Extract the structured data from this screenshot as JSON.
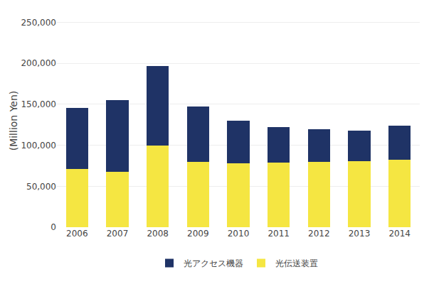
{
  "chart_data": {
    "type": "bar",
    "stacked": true,
    "categories": [
      "2006",
      "2007",
      "2008",
      "2009",
      "2010",
      "2011",
      "2012",
      "2013",
      "2014"
    ],
    "series": [
      {
        "name": "光伝送装置",
        "color": "#F5E642",
        "values": [
          71000,
          68000,
          100000,
          80000,
          78000,
          79000,
          80000,
          81000,
          82000
        ]
      },
      {
        "name": "光アクセス機器",
        "color": "#1F3366",
        "values": [
          75000,
          87000,
          97000,
          67000,
          52000,
          43000,
          40000,
          37000,
          42000
        ]
      }
    ],
    "ylabel": "(Million Yen)",
    "ylim": [
      0,
      260000
    ],
    "yticks": [
      0,
      {
        "value": 50000,
        "label": "50,000"
      },
      {
        "value": 100000,
        "label": "100,000"
      },
      {
        "value": 150000,
        "label": "150,000"
      },
      {
        "value": 200000,
        "label": "200,000"
      },
      {
        "value": 250000,
        "label": "250,000"
      }
    ],
    "grid": true,
    "legend": "bottom"
  }
}
